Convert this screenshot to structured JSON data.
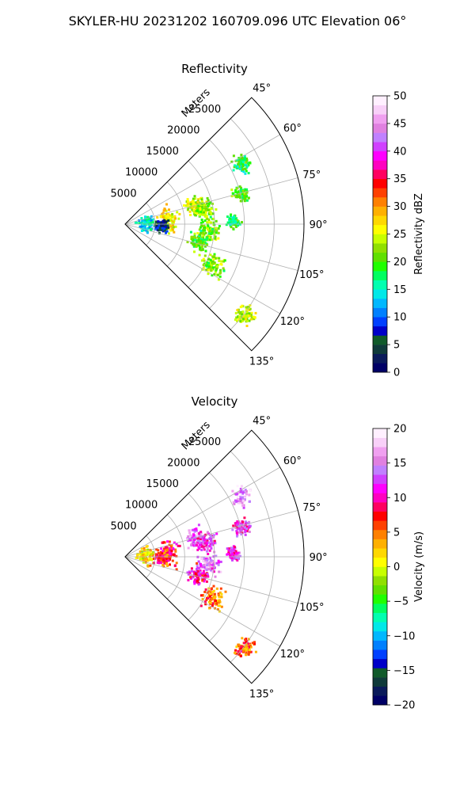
{
  "figure_title": "SKYLER-HU  20231202  160709.096 UTC Elevation 06°",
  "chart_data": [
    {
      "type": "polar-sector",
      "title": "Reflectivity",
      "radial_label": "Meters",
      "theta_range_deg": [
        45,
        135
      ],
      "theta_ticks": [
        45,
        60,
        75,
        90,
        105,
        120,
        135
      ],
      "theta_tick_labels": [
        "45°",
        "60°",
        "75°",
        "90°",
        "105°",
        "120°",
        "135°"
      ],
      "r_range": [
        0,
        30000
      ],
      "r_ticks": [
        5000,
        10000,
        15000,
        20000,
        25000
      ],
      "r_tick_labels": [
        "5000",
        "10000",
        "15000",
        "20000",
        "25000"
      ],
      "grid": true,
      "colorbar": {
        "label": "Reflectivity dBZ",
        "range": [
          0,
          50
        ],
        "ticks": [
          0,
          5,
          10,
          15,
          20,
          25,
          30,
          35,
          40,
          45,
          50
        ],
        "tick_labels": [
          "0",
          "5",
          "10",
          "15",
          "20",
          "25",
          "30",
          "35",
          "40",
          "45",
          "50"
        ],
        "colors": [
          "#000066",
          "#0a1a5a",
          "#0f3a3a",
          "#105a2a",
          "#0000c8",
          "#0040ff",
          "#0080ff",
          "#00b8ff",
          "#00e8e8",
          "#00ffb0",
          "#00ff60",
          "#20ff00",
          "#60e000",
          "#90e000",
          "#c8ff00",
          "#ffff00",
          "#ffd800",
          "#ffb000",
          "#ff8000",
          "#ff4000",
          "#ff0000",
          "#ff0060",
          "#ff00c0",
          "#ff00ff",
          "#d040ff",
          "#c080ff",
          "#e080e0",
          "#f0a0f0",
          "#f8d0f8",
          "#fff0ff"
        ]
      },
      "echoes": [
        {
          "az": 62,
          "r": 22000,
          "size": 1400,
          "value": 18
        },
        {
          "az": 75,
          "r": 20000,
          "size": 1200,
          "value": 20
        },
        {
          "az": 74,
          "r": 12000,
          "size": 1500,
          "value": 24
        },
        {
          "az": 79,
          "r": 13500,
          "size": 1600,
          "value": 22
        },
        {
          "az": 83,
          "r": 7000,
          "size": 1800,
          "value": 26
        },
        {
          "az": 86,
          "r": 3500,
          "size": 1400,
          "value": 14
        },
        {
          "az": 88,
          "r": 18000,
          "size": 1000,
          "value": 18
        },
        {
          "az": 95,
          "r": 14000,
          "size": 1700,
          "value": 22
        },
        {
          "az": 103,
          "r": 12500,
          "size": 1500,
          "value": 20
        },
        {
          "az": 115,
          "r": 16000,
          "size": 1800,
          "value": 22
        },
        {
          "az": 127,
          "r": 25000,
          "size": 1500,
          "value": 24
        },
        {
          "az": 91,
          "r": 6000,
          "size": 1000,
          "value": 6
        }
      ]
    },
    {
      "type": "polar-sector",
      "title": "Velocity",
      "radial_label": "Meters",
      "theta_range_deg": [
        45,
        135
      ],
      "theta_ticks": [
        45,
        60,
        75,
        90,
        105,
        120,
        135
      ],
      "theta_tick_labels": [
        "45°",
        "60°",
        "75°",
        "90°",
        "105°",
        "120°",
        "135°"
      ],
      "r_range": [
        0,
        30000
      ],
      "r_ticks": [
        5000,
        10000,
        15000,
        20000,
        25000
      ],
      "r_tick_labels": [
        "5000",
        "10000",
        "15000",
        "20000",
        "25000"
      ],
      "grid": true,
      "colorbar": {
        "label": "Velocity (m/s)",
        "range": [
          -20,
          20
        ],
        "ticks": [
          -20,
          -15,
          -10,
          -5,
          0,
          5,
          10,
          15,
          20
        ],
        "tick_labels": [
          "−20",
          "−15",
          "−10",
          "−5",
          "0",
          "5",
          "10",
          "15",
          "20"
        ],
        "colors": [
          "#000066",
          "#0a1a5a",
          "#0f3a3a",
          "#105a2a",
          "#0000c8",
          "#0040ff",
          "#0080ff",
          "#00b8ff",
          "#00e8e8",
          "#00ffb0",
          "#00ff60",
          "#20ff00",
          "#60e000",
          "#90e000",
          "#c8ff00",
          "#ffff00",
          "#ffd800",
          "#ffb000",
          "#ff8000",
          "#ff4000",
          "#ff0000",
          "#ff0060",
          "#ff00c0",
          "#ff00ff",
          "#d040ff",
          "#c080ff",
          "#e080e0",
          "#f0a0f0",
          "#f8d0f8",
          "#fff0ff"
        ]
      },
      "echoes": [
        {
          "az": 62,
          "r": 22000,
          "size": 1400,
          "value": 16
        },
        {
          "az": 75,
          "r": 20000,
          "size": 1200,
          "value": 12
        },
        {
          "az": 74,
          "r": 12000,
          "size": 1500,
          "value": 15
        },
        {
          "az": 79,
          "r": 13500,
          "size": 1600,
          "value": 12
        },
        {
          "az": 83,
          "r": 7000,
          "size": 1800,
          "value": 8
        },
        {
          "az": 86,
          "r": 3500,
          "size": 1400,
          "value": 2
        },
        {
          "az": 88,
          "r": 18000,
          "size": 1000,
          "value": 12
        },
        {
          "az": 95,
          "r": 14000,
          "size": 1700,
          "value": 14
        },
        {
          "az": 103,
          "r": 12500,
          "size": 1500,
          "value": 10
        },
        {
          "az": 115,
          "r": 16000,
          "size": 1800,
          "value": 5
        },
        {
          "az": 127,
          "r": 25000,
          "size": 1500,
          "value": 6
        },
        {
          "az": 91,
          "r": 6000,
          "size": 1000,
          "value": 7
        }
      ]
    }
  ]
}
